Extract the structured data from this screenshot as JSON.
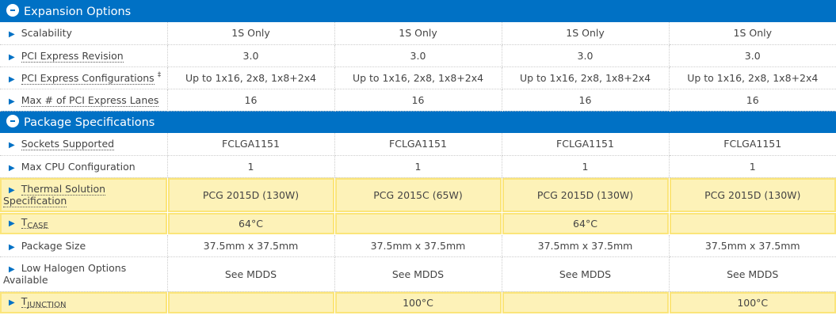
{
  "sections": [
    {
      "title": "Expansion Options",
      "rows": [
        {
          "label": "Scalability",
          "values": [
            "1S Only",
            "1S Only",
            "1S Only",
            "1S Only"
          ]
        },
        {
          "label": "PCI Express Revision",
          "values": [
            "3.0",
            "3.0",
            "3.0",
            "3.0"
          ]
        },
        {
          "label": "PCI Express Configurations",
          "footnote": "‡",
          "values": [
            "Up to 1x16, 2x8, 1x8+2x4",
            "Up to 1x16, 2x8, 1x8+2x4",
            "Up to 1x16, 2x8, 1x8+2x4",
            "Up to 1x16, 2x8, 1x8+2x4"
          ]
        },
        {
          "label": "Max # of PCI Express Lanes",
          "values": [
            "16",
            "16",
            "16",
            "16"
          ]
        }
      ]
    },
    {
      "title": "Package Specifications",
      "rows": [
        {
          "label": "Sockets Supported",
          "values": [
            "FCLGA1151",
            "FCLGA1151",
            "FCLGA1151",
            "FCLGA1151"
          ]
        },
        {
          "label": "Max CPU Configuration",
          "values": [
            "1",
            "1",
            "1",
            "1"
          ]
        },
        {
          "label": "Thermal Solution Specification",
          "values": [
            "PCG 2015D (130W)",
            "PCG 2015C (65W)",
            "PCG 2015D (130W)",
            "PCG 2015D (130W)"
          ],
          "highlighted": true
        },
        {
          "label": "T",
          "sub": "CASE",
          "values": [
            "64°C",
            "",
            "64°C",
            ""
          ],
          "highlighted": true
        },
        {
          "label": "Package Size",
          "values": [
            "37.5mm x 37.5mm",
            "37.5mm x 37.5mm",
            "37.5mm x 37.5mm",
            "37.5mm x 37.5mm"
          ]
        },
        {
          "label": "Low Halogen Options Available",
          "values": [
            "See MDDS",
            "See MDDS",
            "See MDDS",
            "See MDDS"
          ]
        },
        {
          "label": "T",
          "sub": "JUNCTION",
          "values": [
            "",
            "100°C",
            "",
            "100°C"
          ],
          "highlighted": true
        }
      ]
    }
  ],
  "colors": {
    "header": "#0071c5",
    "highlight": "#fdf2b8",
    "arrow": "#0071c5"
  }
}
